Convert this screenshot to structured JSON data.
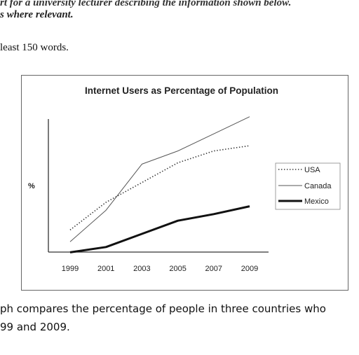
{
  "prompt": {
    "line1": "rt for a university lecturer describing the information shown below.",
    "line2": "s where relevant.",
    "line3": "least 150 words."
  },
  "caption": {
    "line1": "ph compares the percentage of people in three countries who",
    "line2": "99 and 2009."
  },
  "chart_data": {
    "type": "line",
    "title": "Internet Users as Percentage of Population",
    "xlabel": "",
    "ylabel": "%",
    "x": [
      1999,
      2001,
      2003,
      2005,
      2007,
      2009
    ],
    "x_ticks": [
      "1999",
      "2001",
      "2003",
      "2005",
      "2007",
      "2009"
    ],
    "ylim": [
      0,
      100
    ],
    "grid": false,
    "legend_position": "right",
    "series": [
      {
        "name": "USA",
        "style": "dotted",
        "color": "#333333",
        "values": [
          20,
          41,
          56,
          71,
          80,
          84
        ]
      },
      {
        "name": "Canada",
        "style": "solid-thin",
        "color": "#555555",
        "values": [
          11,
          35,
          70,
          80,
          93,
          106
        ]
      },
      {
        "name": "Mexico",
        "style": "solid-thick",
        "color": "#111111",
        "values": [
          3,
          7,
          17,
          27,
          32,
          38
        ]
      }
    ]
  }
}
